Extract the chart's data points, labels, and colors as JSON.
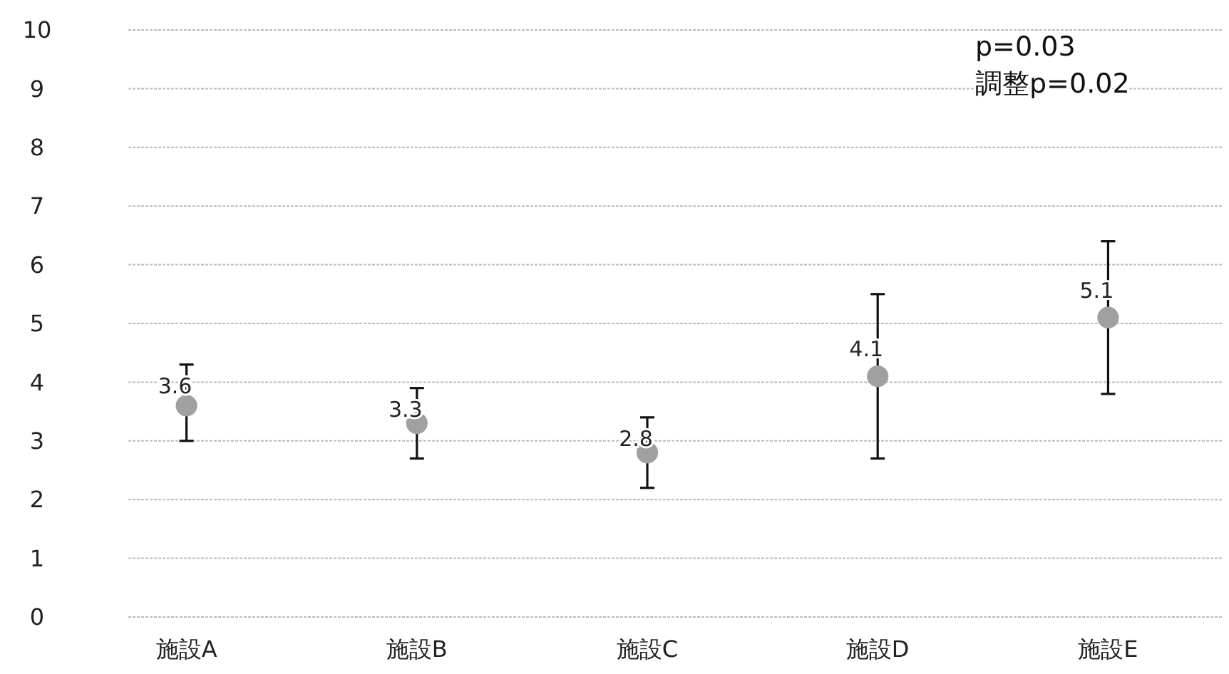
{
  "chart_data": {
    "type": "scatter",
    "categories": [
      "施設A",
      "施設B",
      "施設C",
      "施設D",
      "施設E"
    ],
    "values": [
      3.6,
      3.3,
      2.8,
      4.1,
      5.1
    ],
    "errors": [
      [
        3.0,
        4.3
      ],
      [
        2.7,
        3.9
      ],
      [
        2.2,
        3.4
      ],
      [
        2.7,
        5.5
      ],
      [
        3.8,
        6.4
      ]
    ],
    "color": "#a0a0a0",
    "marker": "circle",
    "data_labels": true,
    "ylim": [
      0,
      10
    ],
    "yticks": [
      0,
      1,
      2,
      3,
      4,
      5,
      6,
      7,
      8,
      9,
      10
    ],
    "grid": "y",
    "annotations": [
      "p=0.03",
      "調整p=0.02"
    ]
  }
}
